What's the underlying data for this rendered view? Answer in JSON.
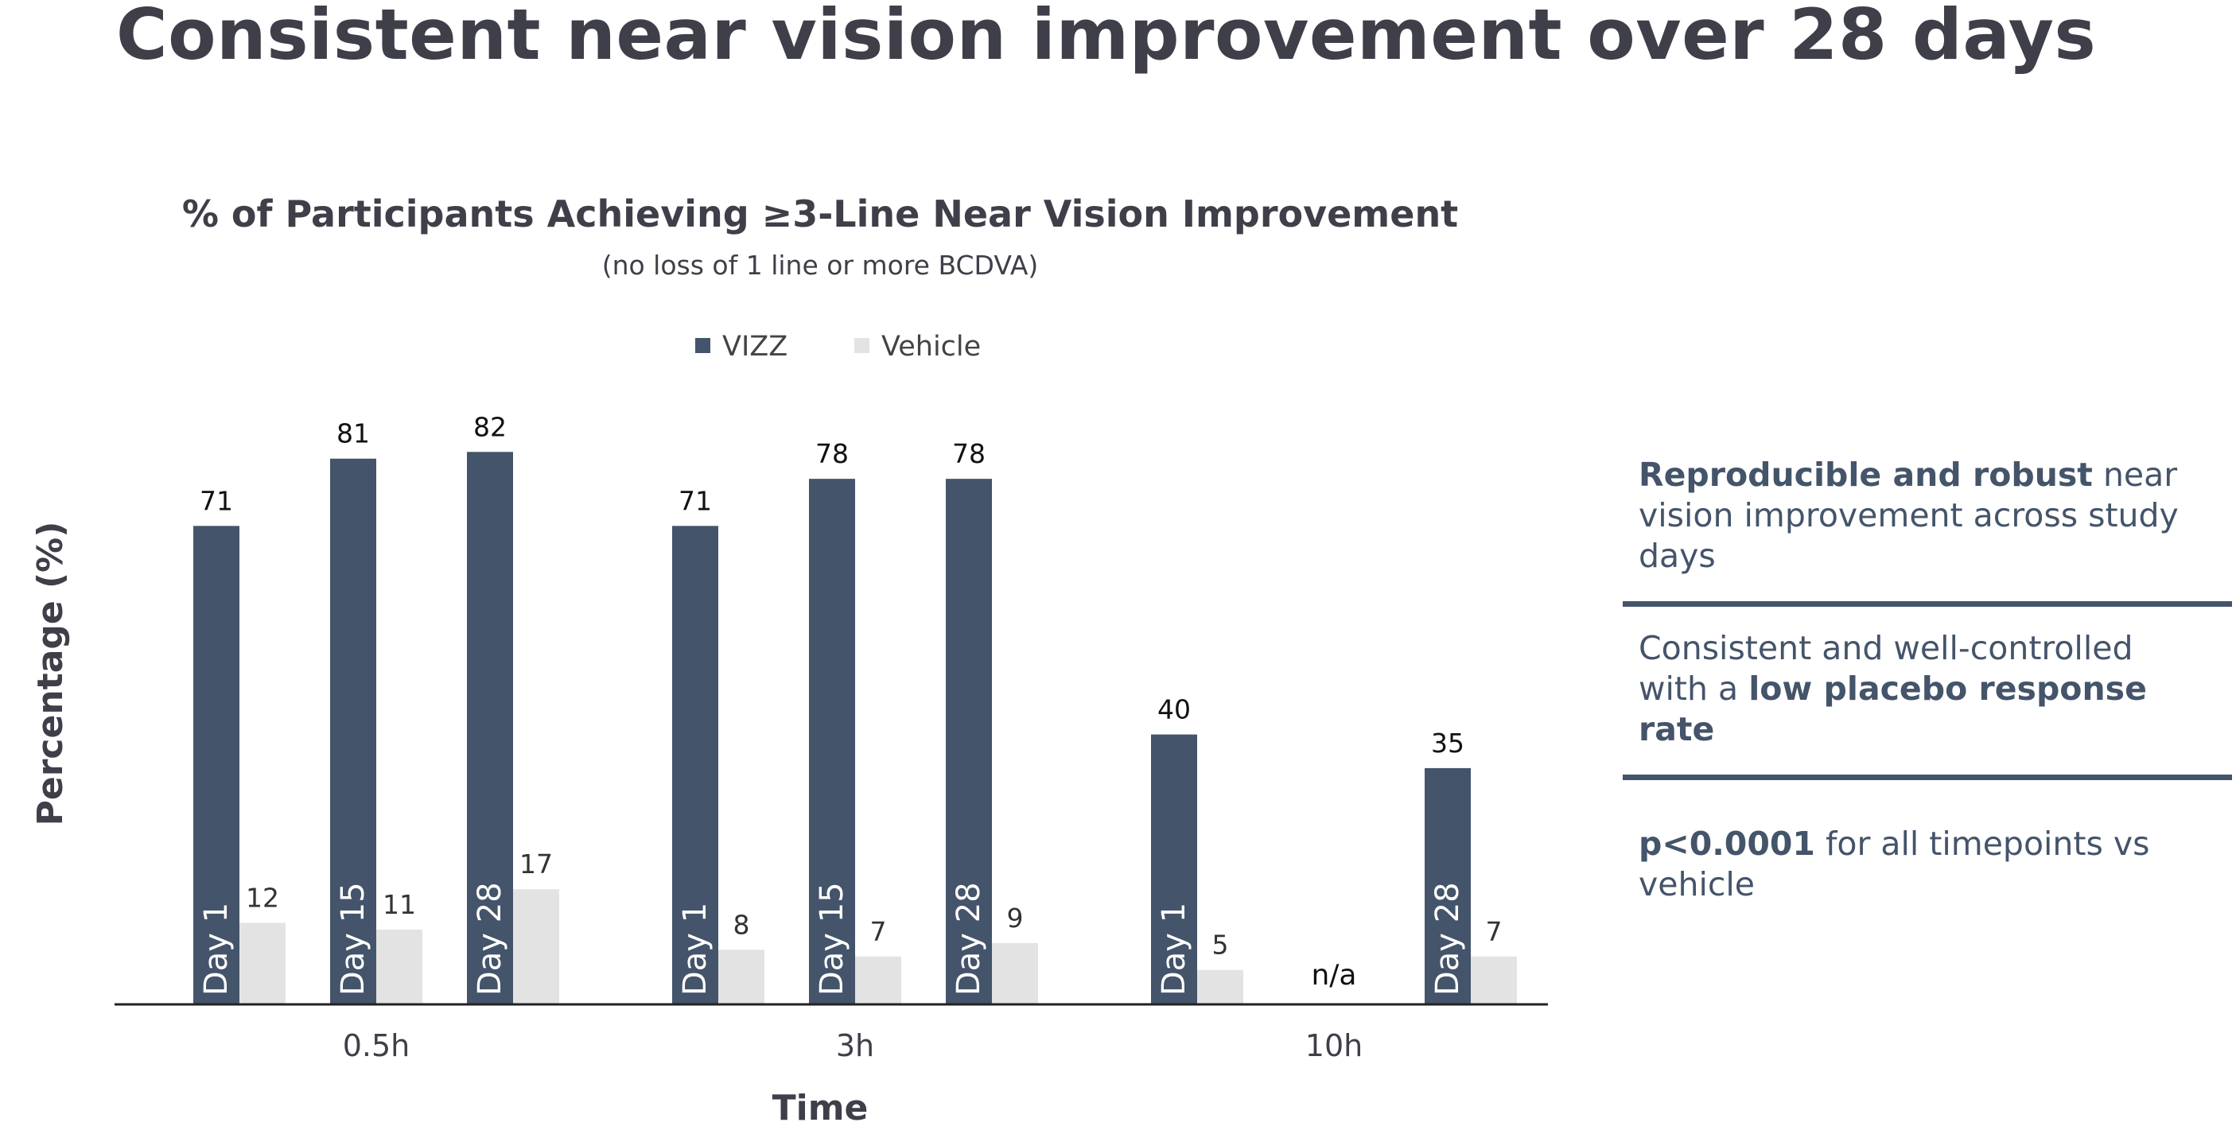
{
  "page_title": "Consistent near vision improvement over 28 days",
  "chart_data": {
    "type": "bar",
    "title": "% of Participants Achieving ≥3-Line Near Vision Improvement",
    "subtitle": "(no loss of 1 line or more BCDVA)",
    "xlabel": "Time",
    "ylabel": "Percentage (%)",
    "ylim": [
      0,
      100
    ],
    "grid": false,
    "legend_position": "top",
    "categories": [
      "0.5h",
      "3h",
      "10h"
    ],
    "subcategories": [
      "Day 1",
      "Day 15",
      "Day 28"
    ],
    "series": [
      {
        "name": "VIZZ",
        "color": "#44546a",
        "values": [
          [
            71,
            81,
            82
          ],
          [
            71,
            78,
            78
          ],
          [
            40,
            null,
            35
          ]
        ]
      },
      {
        "name": "Vehicle",
        "color": "#e3e3e3",
        "values": [
          [
            12,
            11,
            17
          ],
          [
            8,
            7,
            9
          ],
          [
            5,
            null,
            7
          ]
        ]
      }
    ],
    "missing_label": "n/a"
  },
  "panel": {
    "points": [
      [
        {
          "text": "Reproducible and robust",
          "bold": true
        },
        {
          "text": " near vision improvement across study days",
          "bold": false
        }
      ],
      [
        {
          "text": "Consistent and well-controlled with a ",
          "bold": false
        },
        {
          "text": "low placebo response rate",
          "bold": true
        }
      ],
      [
        {
          "text": "p<0.0001",
          "bold": true
        },
        {
          "text": " for all timepoints vs vehicle",
          "bold": false
        }
      ]
    ]
  }
}
